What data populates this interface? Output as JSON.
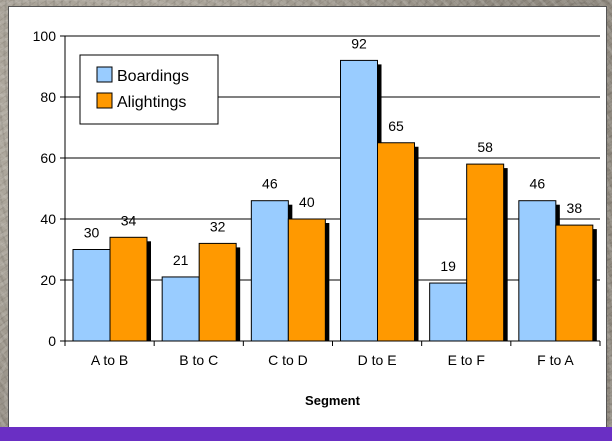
{
  "chart_data": {
    "type": "bar",
    "title": "",
    "xlabel": "Segment",
    "ylabel": "",
    "categories": [
      "A to B",
      "B to C",
      "C to D",
      "D to E",
      "E to F",
      "F to A"
    ],
    "series": [
      {
        "name": "Boardings",
        "values": [
          30,
          21,
          46,
          92,
          19,
          46
        ],
        "color": "#99ccff"
      },
      {
        "name": "Alightings",
        "values": [
          34,
          32,
          40,
          65,
          58,
          38
        ],
        "color": "#ff9900"
      }
    ],
    "ylim": [
      0,
      100
    ],
    "yticks": [
      0,
      20,
      40,
      60,
      80,
      100
    ],
    "grid": true,
    "legend_position": "top-left",
    "data_labels": true
  }
}
